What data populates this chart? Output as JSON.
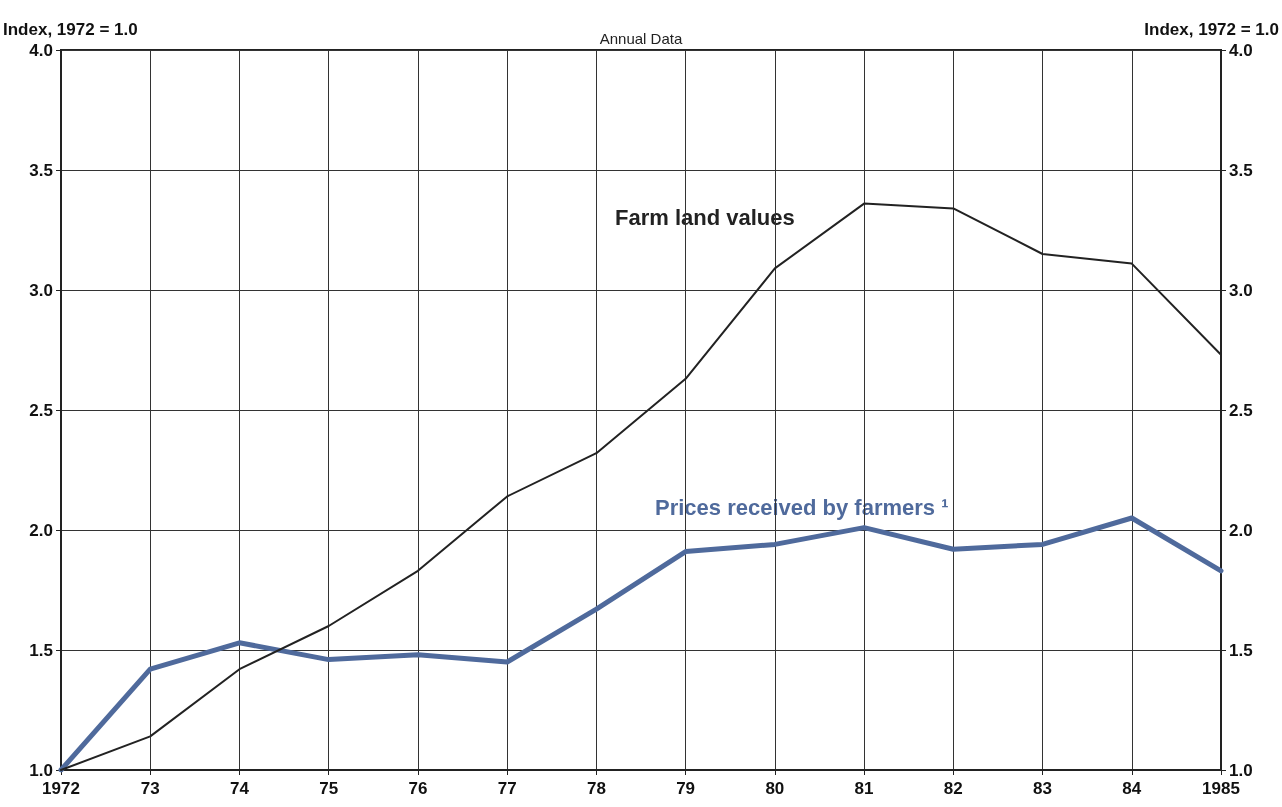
{
  "chart_data": {
    "type": "line",
    "subtitle": "Annual Data",
    "ylabel": "Index, 1972 = 1.0",
    "y2label": "Index, 1972 = 1.0",
    "categories": [
      "1972",
      "73",
      "74",
      "75",
      "76",
      "77",
      "78",
      "79",
      "80",
      "81",
      "82",
      "83",
      "84",
      "1985"
    ],
    "series": [
      {
        "name": "Farm land values",
        "color": "#222222",
        "values": [
          1.0,
          1.14,
          1.42,
          1.6,
          1.83,
          2.14,
          2.32,
          2.63,
          3.09,
          3.36,
          3.34,
          3.15,
          3.11,
          2.73
        ]
      },
      {
        "name": "Prices received by farmers ¹",
        "color": "#4f6a9c",
        "values": [
          1.0,
          1.42,
          1.53,
          1.46,
          1.48,
          1.45,
          1.67,
          1.91,
          1.94,
          2.01,
          1.92,
          1.94,
          2.05,
          1.83
        ]
      }
    ],
    "ylim": [
      1.0,
      4.0
    ],
    "yticks": [
      {
        "value": 1,
        "label": "1.0"
      },
      {
        "value": 1.5,
        "label": "1.5"
      },
      {
        "value": 2,
        "label": "2.0"
      },
      {
        "value": 2.5,
        "label": "2.5"
      },
      {
        "value": 3,
        "label": "3.0"
      },
      {
        "value": 3.5,
        "label": "3.5"
      },
      {
        "value": 4,
        "label": "4.0"
      }
    ],
    "y2lim": [
      1.0,
      4.0
    ],
    "y2ticks": [
      {
        "value": 1,
        "label": "1.0"
      },
      {
        "value": 1.5,
        "label": "1.5"
      },
      {
        "value": 2,
        "label": "2.0"
      },
      {
        "value": 2.5,
        "label": "2.5"
      },
      {
        "value": 3,
        "label": "3.0"
      },
      {
        "value": 3.5,
        "label": "3.5"
      },
      {
        "value": 4,
        "label": "4.0"
      }
    ],
    "grid": true,
    "legend": false,
    "marker": "none",
    "line_style": "solid"
  }
}
